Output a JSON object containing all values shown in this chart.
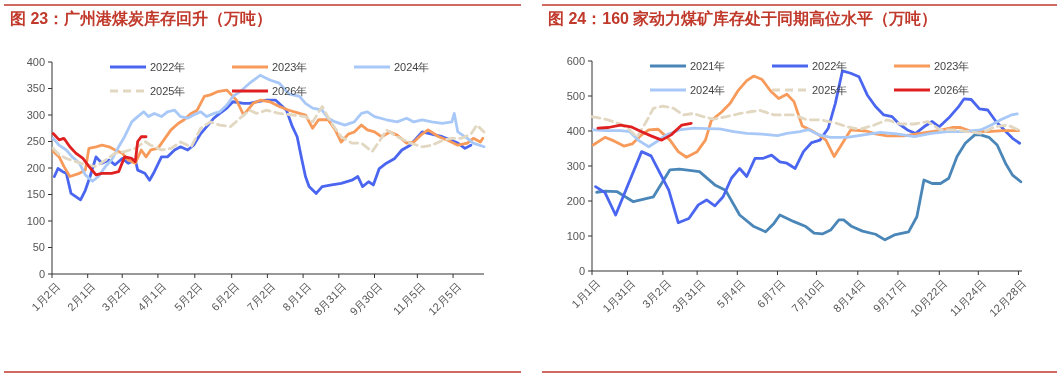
{
  "chart_data": [
    {
      "type": "line",
      "title": "图 23：广州港煤炭库存回升（万吨）",
      "xlim": [
        "--01-02",
        "--12-31"
      ],
      "xticks": [
        {
          "value": "--01-02",
          "label": "1月2日"
        },
        {
          "value": "--02-01",
          "label": "2月1日"
        },
        {
          "value": "--03-02",
          "label": "3月2日"
        },
        {
          "value": "--04-01",
          "label": "4月1日"
        },
        {
          "value": "--05-02",
          "label": "5月2日"
        },
        {
          "value": "--06-02",
          "label": "6月2日"
        },
        {
          "value": "--07-02",
          "label": "7月2日"
        },
        {
          "value": "--08-01",
          "label": "8月1日"
        },
        {
          "value": "--08-31",
          "label": "8月31日"
        },
        {
          "value": "--09-30",
          "label": "9月30日"
        },
        {
          "value": "--11-05",
          "label": "11月5日"
        },
        {
          "value": "--12-05",
          "label": "12月5日"
        }
      ],
      "ylim": [
        0,
        400
      ],
      "yticks": [
        0,
        50,
        100,
        150,
        200,
        250,
        300,
        350,
        400
      ],
      "grid": false,
      "legend": "top",
      "marker": "none",
      "series": [
        {
          "name": "2022年",
          "color": "#4a66f0",
          "x": [
            "--01-04",
            "--01-07",
            "--01-11",
            "--01-14",
            "--01-18",
            "--01-22",
            "--01-26",
            "--01-30",
            "--02-03",
            "--02-08",
            "--02-13",
            "--02-19",
            "--02-24",
            "--03-02",
            "--03-07",
            "--03-13",
            "--03-15",
            "--03-21",
            "--03-25",
            "--03-29",
            "--04-04",
            "--04-09",
            "--04-15",
            "--04-20",
            "--04-26",
            "--05-01",
            "--05-07",
            "--05-12",
            "--05-18",
            "--05-23",
            "--05-29",
            "--06-03",
            "--06-12",
            "--06-17",
            "--06-23",
            "--07-01",
            "--07-09",
            "--07-18",
            "--07-23",
            "--07-27",
            "--07-31",
            "--08-03",
            "--08-06",
            "--08-12",
            "--08-17",
            "--08-25",
            "--09-02",
            "--09-11",
            "--09-16",
            "--09-20",
            "--09-25",
            "--09-29",
            "--10-04",
            "--10-10",
            "--10-17",
            "--10-23",
            "--10-30",
            "--11-09",
            "--11-17",
            "--11-26",
            "--12-04",
            "--12-09",
            "--12-15",
            "--12-20"
          ],
          "values": [
            184,
            199,
            193,
            190,
            152,
            146,
            140,
            158,
            184,
            221,
            209,
            215,
            206,
            218,
            209,
            215,
            196,
            190,
            177,
            193,
            221,
            221,
            234,
            240,
            234,
            243,
            265,
            278,
            294,
            303,
            313,
            325,
            322,
            322,
            325,
            328,
            328,
            309,
            278,
            259,
            215,
            184,
            165,
            152,
            165,
            168,
            171,
            177,
            184,
            165,
            174,
            168,
            199,
            209,
            218,
            234,
            243,
            268,
            264,
            259,
            252,
            247,
            237,
            243
          ]
        },
        {
          "name": "2023年",
          "color": "#f79a5a",
          "x": [
            "--01-03",
            "--01-08",
            "--01-12",
            "--01-17",
            "--01-25",
            "--01-30",
            "--02-02",
            "--02-08",
            "--02-13",
            "--02-19",
            "--02-24",
            "--03-02",
            "--03-07",
            "--03-13",
            "--03-18",
            "--03-22",
            "--03-26",
            "--04-01",
            "--04-06",
            "--04-12",
            "--04-18",
            "--04-23",
            "--04-29",
            "--05-04",
            "--05-10",
            "--05-15",
            "--05-21",
            "--05-29",
            "--06-06",
            "--06-12",
            "--06-20",
            "--06-26",
            "--07-04",
            "--07-12",
            "--07-20",
            "--07-29",
            "--08-03",
            "--08-09",
            "--08-14",
            "--08-22",
            "--08-28",
            "--09-02",
            "--09-08",
            "--09-13",
            "--09-19",
            "--09-24",
            "--09-30",
            "--10-06",
            "--10-13",
            "--10-19",
            "--10-27",
            "--11-02",
            "--11-09",
            "--11-14",
            "--11-23",
            "--12-01",
            "--12-09",
            "--12-17",
            "--12-22",
            "--12-28",
            "--12-30"
          ],
          "values": [
            231,
            221,
            203,
            184,
            190,
            196,
            237,
            240,
            243,
            240,
            234,
            228,
            215,
            209,
            234,
            221,
            234,
            237,
            253,
            272,
            284,
            291,
            303,
            309,
            335,
            338,
            344,
            347,
            328,
            300,
            322,
            328,
            325,
            316,
            309,
            303,
            300,
            275,
            291,
            291,
            272,
            249,
            264,
            268,
            281,
            272,
            268,
            259,
            268,
            262,
            247,
            249,
            264,
            272,
            259,
            252,
            243,
            247,
            256,
            249,
            256
          ]
        },
        {
          "name": "2024年",
          "color": "#a8c8f8",
          "x": [
            "--01-03",
            "--01-08",
            "--01-14",
            "--01-19",
            "--01-25",
            "--01-30",
            "--02-05",
            "--02-10",
            "--02-16",
            "--02-21",
            "--02-27",
            "--03-04",
            "--03-10",
            "--03-15",
            "--03-20",
            "--03-24",
            "--03-29",
            "--04-04",
            "--04-09",
            "--04-15",
            "--04-20",
            "--04-26",
            "--05-01",
            "--05-07",
            "--05-12",
            "--05-18",
            "--05-23",
            "--05-29",
            "--06-03",
            "--06-09",
            "--06-17",
            "--06-26",
            "--07-04",
            "--07-12",
            "--07-20",
            "--07-29",
            "--08-03",
            "--08-09",
            "--08-17",
            "--08-22",
            "--08-28",
            "--09-05",
            "--09-13",
            "--09-19",
            "--09-24",
            "--09-30",
            "--10-10",
            "--10-19",
            "--10-27",
            "--11-02",
            "--11-09",
            "--11-17",
            "--11-26",
            "--12-04",
            "--12-06",
            "--12-09",
            "--12-17",
            "--12-22",
            "--12-31"
          ],
          "values": [
            256,
            243,
            234,
            221,
            209,
            187,
            175,
            184,
            203,
            215,
            240,
            259,
            287,
            297,
            306,
            297,
            303,
            297,
            306,
            309,
            297,
            294,
            300,
            306,
            297,
            303,
            306,
            319,
            335,
            344,
            360,
            375,
            366,
            360,
            340,
            335,
            322,
            313,
            309,
            294,
            287,
            281,
            287,
            303,
            306,
            297,
            291,
            287,
            294,
            287,
            291,
            287,
            284,
            287,
            303,
            268,
            256,
            247,
            240
          ]
        },
        {
          "name": "2025年",
          "color": "#e2d8c2",
          "line_style": "dashed",
          "x": [
            "--01-03",
            "--01-08",
            "--01-14",
            "--01-22",
            "--01-30",
            "--02-08",
            "--02-16",
            "--02-24",
            "--03-04",
            "--03-13",
            "--03-21",
            "--03-26",
            "--04-04",
            "--04-12",
            "--04-20",
            "--04-29",
            "--05-07",
            "--05-15",
            "--05-23",
            "--06-01",
            "--06-09",
            "--06-17",
            "--06-23",
            "--07-01",
            "--07-12",
            "--07-23",
            "--08-03",
            "--08-09",
            "--08-17",
            "--08-25",
            "--09-02",
            "--09-11",
            "--09-19",
            "--09-28",
            "--10-04",
            "--10-10",
            "--10-19",
            "--10-30",
            "--11-09",
            "--11-17",
            "--11-26",
            "--12-04",
            "--12-12",
            "--12-20",
            "--12-25",
            "--12-31"
          ],
          "values": [
            237,
            225,
            218,
            212,
            206,
            203,
            215,
            228,
            231,
            237,
            250,
            243,
            234,
            237,
            249,
            240,
            275,
            287,
            281,
            278,
            294,
            309,
            303,
            309,
            303,
            300,
            297,
            287,
            316,
            284,
            259,
            247,
            247,
            231,
            250,
            272,
            259,
            247,
            240,
            243,
            252,
            256,
            256,
            264,
            281,
            268
          ]
        },
        {
          "name": "2026年",
          "color": "#e02020",
          "x": [
            "--01-03",
            "--01-08",
            "--01-12",
            "--01-17",
            "--01-22",
            "--01-28",
            "--02-02",
            "--02-08",
            "--02-13",
            "--02-21",
            "--02-27",
            "--03-04",
            "--03-10",
            "--03-13",
            "--03-15",
            "--03-18",
            "--03-22"
          ],
          "values": [
            265,
            253,
            256,
            240,
            228,
            218,
            203,
            187,
            190,
            190,
            193,
            221,
            218,
            212,
            250,
            259,
            259
          ]
        }
      ]
    },
    {
      "type": "line",
      "title": "图 24：160 家动力煤矿库存处于同期高位水平（万吨）",
      "xlim": [
        "--01-01",
        "--12-31"
      ],
      "xticks": [
        {
          "value": "--01-01",
          "label": "1月1日"
        },
        {
          "value": "--01-31",
          "label": "1月31日"
        },
        {
          "value": "--03-02",
          "label": "3月2日"
        },
        {
          "value": "--03-31",
          "label": "3月31日"
        },
        {
          "value": "--05-04",
          "label": "5月4日"
        },
        {
          "value": "--06-07",
          "label": "6月7日"
        },
        {
          "value": "--07-10",
          "label": "7月10日"
        },
        {
          "value": "--08-14",
          "label": "8月14日"
        },
        {
          "value": "--09-17",
          "label": "9月17日"
        },
        {
          "value": "--10-22",
          "label": "10月22日"
        },
        {
          "value": "--11-24",
          "label": "11月24日"
        },
        {
          "value": "--12-28",
          "label": "12月28日"
        }
      ],
      "ylim": [
        0,
        600
      ],
      "yticks": [
        0,
        100,
        200,
        300,
        400,
        500,
        600
      ],
      "grid": false,
      "legend": "top",
      "marker": "none",
      "series": [
        {
          "name": "2021年",
          "color": "#4a86b8",
          "x": [
            "--01-05",
            "--01-12",
            "--01-22",
            "--02-05",
            "--02-22",
            "--03-08",
            "--03-16",
            "--04-02",
            "--04-15",
            "--04-24",
            "--05-06",
            "--05-18",
            "--05-28",
            "--06-04",
            "--06-09",
            "--06-21",
            "--07-01",
            "--07-08",
            "--07-15",
            "--07-22",
            "--07-29",
            "--08-02",
            "--08-09",
            "--08-18",
            "--08-29",
            "--09-06",
            "--09-14",
            "--09-26",
            "--10-03",
            "--10-09",
            "--10-16",
            "--10-23",
            "--10-30",
            "--11-06",
            "--11-13",
            "--11-21",
            "--11-26",
            "--12-03",
            "--12-10",
            "--12-17",
            "--12-23",
            "--12-30"
          ],
          "values": [
            225,
            228,
            227,
            198,
            212,
            289,
            291,
            284,
            246,
            231,
            160,
            127,
            112,
            136,
            160,
            141,
            127,
            108,
            106,
            117,
            146,
            146,
            127,
            114,
            105,
            89,
            103,
            112,
            155,
            260,
            250,
            250,
            265,
            327,
            365,
            389,
            389,
            382,
            360,
            308,
            274,
            255
          ]
        },
        {
          "name": "2022年",
          "color": "#4a66f0",
          "x": [
            "--01-04",
            "--01-12",
            "--01-21",
            "--02-12",
            "--02-20",
            "--03-07",
            "--03-15",
            "--03-24",
            "--04-01",
            "--04-08",
            "--04-15",
            "--04-22",
            "--04-29",
            "--05-06",
            "--05-12",
            "--05-19",
            "--05-26",
            "--06-02",
            "--06-09",
            "--06-15",
            "--06-22",
            "--06-29",
            "--07-06",
            "--07-13",
            "--07-20",
            "--07-26",
            "--08-01",
            "--08-08",
            "--08-15",
            "--08-22",
            "--08-29",
            "--09-05",
            "--09-12",
            "--09-18",
            "--09-25",
            "--10-02",
            "--10-09",
            "--10-16",
            "--10-22",
            "--10-31",
            "--11-07",
            "--11-12",
            "--11-18",
            "--11-25",
            "--12-02",
            "--12-09",
            "--12-16",
            "--12-23",
            "--12-29"
          ],
          "values": [
            241,
            224,
            160,
            341,
            329,
            231,
            138,
            150,
            189,
            203,
            186,
            212,
            265,
            293,
            270,
            322,
            322,
            331,
            312,
            308,
            293,
            341,
            367,
            374,
            408,
            479,
            572,
            565,
            555,
            503,
            470,
            446,
            441,
            420,
            403,
            393,
            412,
            427,
            412,
            441,
            468,
            492,
            490,
            463,
            460,
            427,
            403,
            379,
            365
          ]
        },
        {
          "name": "2023年",
          "color": "#f79a5a",
          "x": [
            "--01-02",
            "--01-12",
            "--01-20",
            "--01-28",
            "--02-04",
            "--02-12",
            "--02-18",
            "--02-26",
            "--03-08",
            "--03-15",
            "--03-22",
            "--03-31",
            "--04-07",
            "--04-12",
            "--04-21",
            "--04-28",
            "--05-05",
            "--05-12",
            "--05-18",
            "--05-25",
            "--06-01",
            "--06-08",
            "--06-15",
            "--06-21",
            "--06-28",
            "--07-05",
            "--07-12",
            "--07-18",
            "--07-25",
            "--08-01",
            "--08-08",
            "--08-21",
            "--08-29",
            "--09-08",
            "--09-22",
            "--10-06",
            "--10-21",
            "--11-02",
            "--11-09",
            "--11-19",
            "--12-02",
            "--12-15",
            "--12-28"
          ],
          "values": [
            360,
            382,
            371,
            357,
            363,
            389,
            403,
            405,
            374,
            341,
            325,
            341,
            374,
            430,
            455,
            479,
            517,
            544,
            557,
            547,
            515,
            493,
            505,
            484,
            414,
            403,
            389,
            374,
            327,
            365,
            403,
            400,
            392,
            386,
            386,
            393,
            401,
            410,
            410,
            398,
            398,
            401,
            401
          ]
        },
        {
          "name": "2024年",
          "color": "#a8c8f8",
          "x": [
            "--01-02",
            "--01-13",
            "--01-25",
            "--02-02",
            "--02-09",
            "--02-18",
            "--02-25",
            "--03-05",
            "--03-16",
            "--03-28",
            "--04-08",
            "--04-19",
            "--05-01",
            "--05-12",
            "--05-25",
            "--06-07",
            "--06-15",
            "--06-26",
            "--07-03",
            "--07-12",
            "--07-22",
            "--08-05",
            "--08-19",
            "--09-02",
            "--09-16",
            "--10-01",
            "--10-15",
            "--10-29",
            "--11-12",
            "--11-26",
            "--12-05",
            "--12-13",
            "--12-22",
            "--12-27"
          ],
          "values": [
            403,
            401,
            401,
            398,
            374,
            355,
            370,
            389,
            403,
            408,
            407,
            406,
            398,
            393,
            391,
            387,
            393,
            398,
            404,
            389,
            382,
            382,
            389,
            396,
            392,
            384,
            393,
            398,
            398,
            403,
            417,
            432,
            446,
            449
          ]
        },
        {
          "name": "2025年",
          "color": "#e2d8c2",
          "line_style": "dashed",
          "x": [
            "--01-01",
            "--01-13",
            "--01-25",
            "--02-02",
            "--02-08",
            "--02-16",
            "--02-22",
            "--03-02",
            "--03-11",
            "--03-19",
            "--03-28",
            "--04-05",
            "--04-14",
            "--04-25",
            "--05-06",
            "--05-15",
            "--05-23",
            "--06-04",
            "--06-15",
            "--06-21",
            "--07-02",
            "--07-13",
            "--07-25",
            "--08-05",
            "--08-16",
            "--08-28",
            "--09-08",
            "--09-19",
            "--10-01",
            "--10-12",
            "--10-23",
            "--11-04",
            "--11-15",
            "--11-26",
            "--12-08",
            "--12-19",
            "--12-30"
          ],
          "values": [
            441,
            433,
            420,
            403,
            382,
            427,
            465,
            471,
            465,
            446,
            450,
            441,
            434,
            441,
            450,
            455,
            459,
            446,
            446,
            446,
            432,
            432,
            424,
            412,
            405,
            417,
            432,
            420,
            420,
            427,
            403,
            403,
            398,
            393,
            412,
            417,
            400
          ]
        },
        {
          "name": "2026年",
          "color": "#e02020",
          "x": [
            "--01-06",
            "--01-15",
            "--01-25",
            "--02-03",
            "--02-12",
            "--02-20",
            "--03-01",
            "--03-09",
            "--03-18",
            "--03-26"
          ],
          "values": [
            408,
            410,
            417,
            412,
            398,
            386,
            374,
            389,
            417,
            422
          ]
        }
      ]
    }
  ]
}
